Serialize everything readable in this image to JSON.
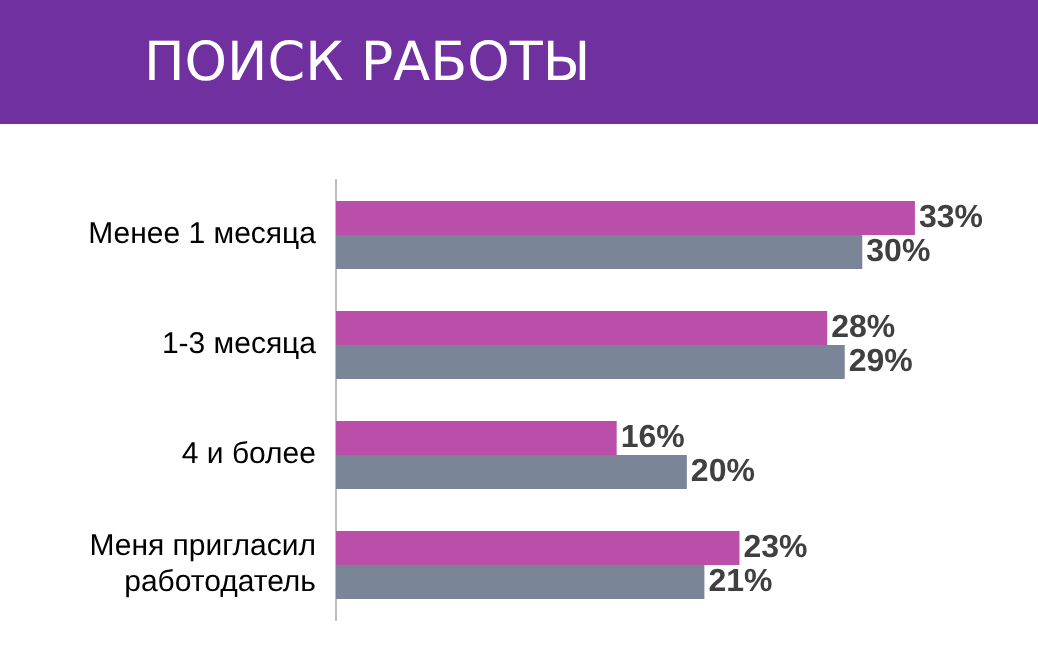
{
  "chart_data": {
    "type": "bar",
    "orientation": "horizontal",
    "title": "ПОИСК РАБОТЫ",
    "categories": [
      "Менее 1 месяца",
      "1-3 месяца",
      "4 и более",
      "Меня пригласил работодатель"
    ],
    "series": [
      {
        "color": "#bb4ea9",
        "values": [
          33,
          28,
          16,
          23
        ],
        "value_labels": [
          "33%",
          "28%",
          "16%",
          "23%"
        ]
      },
      {
        "color": "#7a8598",
        "values": [
          30,
          29,
          20,
          21
        ],
        "value_labels": [
          "30%",
          "29%",
          "20%",
          "21%"
        ]
      }
    ],
    "tick_labels": "y",
    "grid": false,
    "legend": false
  }
}
